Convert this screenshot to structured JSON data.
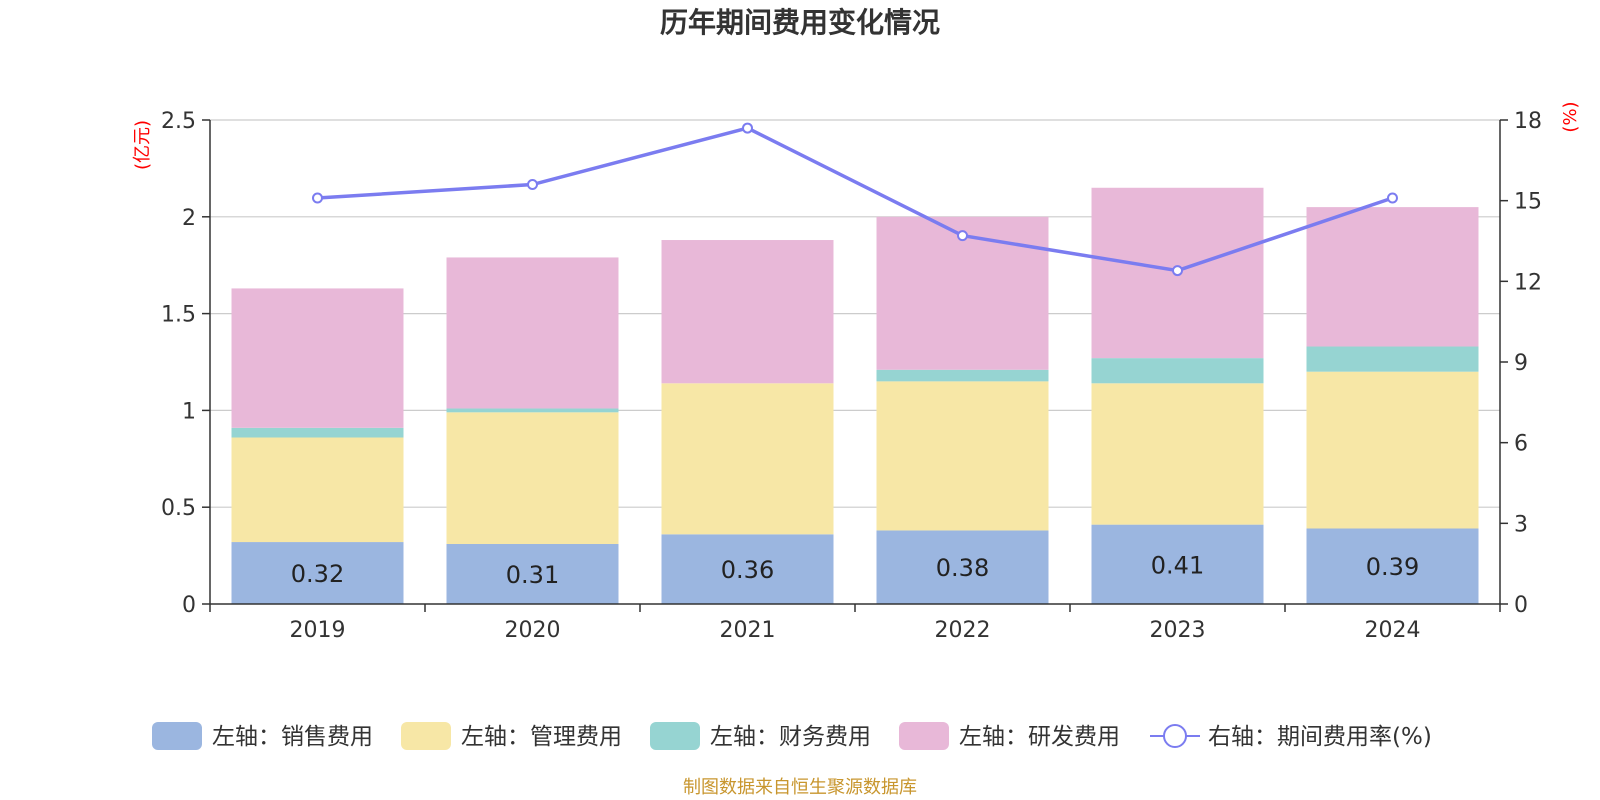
{
  "chart_data": {
    "type": "bar",
    "title": "历年期间费用变化情况",
    "categories": [
      "2019",
      "2020",
      "2021",
      "2022",
      "2023",
      "2024"
    ],
    "left_axis": {
      "unit": "(亿元)",
      "ylim": [
        0,
        2.5
      ],
      "ticks": [
        "0",
        "0.5",
        "1",
        "1.5",
        "2",
        "2.5"
      ]
    },
    "right_axis": {
      "unit": "(%)",
      "ylim": [
        0,
        18
      ],
      "ticks": [
        "0",
        "3",
        "6",
        "9",
        "12",
        "15",
        "18"
      ]
    },
    "grid": true,
    "legend_position": "bottom",
    "series": [
      {
        "name": "左轴：销售费用",
        "type": "bar",
        "stack": true,
        "color": "#9bb6e0",
        "values": [
          0.32,
          0.31,
          0.36,
          0.38,
          0.41,
          0.39
        ],
        "labels": [
          "0.32",
          "0.31",
          "0.36",
          "0.38",
          "0.41",
          "0.39"
        ]
      },
      {
        "name": "左轴：管理费用",
        "type": "bar",
        "stack": true,
        "color": "#f7e7a6",
        "values": [
          0.54,
          0.68,
          0.78,
          0.77,
          0.73,
          0.81
        ]
      },
      {
        "name": "左轴：财务费用",
        "type": "bar",
        "stack": true,
        "color": "#96d4d2",
        "values": [
          0.05,
          0.02,
          0.0,
          0.06,
          0.13,
          0.13
        ]
      },
      {
        "name": "左轴：研发费用",
        "type": "bar",
        "stack": true,
        "color": "#e8b8d8",
        "values": [
          0.72,
          0.78,
          0.74,
          0.79,
          0.88,
          0.72
        ]
      },
      {
        "name": "右轴：期间费用率(%)",
        "type": "line",
        "axis": "right",
        "color": "#7b7cf0",
        "values": [
          15.1,
          15.6,
          17.7,
          13.7,
          12.4,
          15.1
        ]
      }
    ]
  },
  "source": "制图数据来自恒生聚源数据库"
}
